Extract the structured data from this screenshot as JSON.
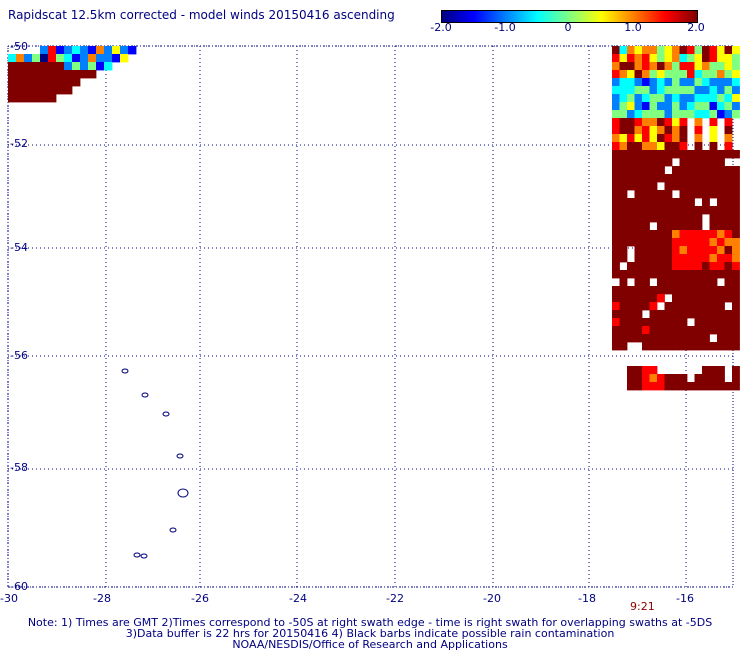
{
  "title": "Rapidscat 12.5km corrected - model winds 20150416 ascending",
  "colorbar": {
    "labels": [
      "-2.0",
      "-1.0",
      "0",
      "1.0",
      "2.0"
    ],
    "values": [
      -2.0,
      -1.0,
      0,
      1.0,
      2.0
    ],
    "range": [
      -2.0,
      2.0
    ],
    "colors": [
      "#000080",
      "#0000ff",
      "#0080ff",
      "#00ffff",
      "#80ff80",
      "#ffff00",
      "#ff8000",
      "#ff0000",
      "#800000"
    ]
  },
  "map": {
    "lon_range": [
      -30,
      -15
    ],
    "lat_range": [
      -60,
      -50
    ],
    "lon_labels": [
      "-30",
      "-28",
      "-26",
      "-24",
      "-22",
      "-20",
      "-18",
      "-16"
    ],
    "lon_values": [
      -30,
      -28,
      -26,
      -24,
      -22,
      -20,
      -18,
      -16
    ],
    "lat_labels": [
      "-50",
      "-52",
      "-54",
      "-56",
      "-58",
      "-60"
    ],
    "lat_values": [
      -50,
      -52,
      -54,
      -56,
      -58,
      -60
    ],
    "grid": "dotted",
    "grid_color": "#00008b",
    "coast_color": "#000080"
  },
  "time_label": "9:21",
  "notes": [
    "Note: 1) Times are GMT 2)Times correspond to -50S at right swath edge - time is right swath for overlapping swaths at -5DS",
    "3)Data buffer is 22 hrs for 20150416 4) Black barbs indicate possible rain contamination",
    "NOAA/NESDIS/Office of Research and Applications"
  ]
}
